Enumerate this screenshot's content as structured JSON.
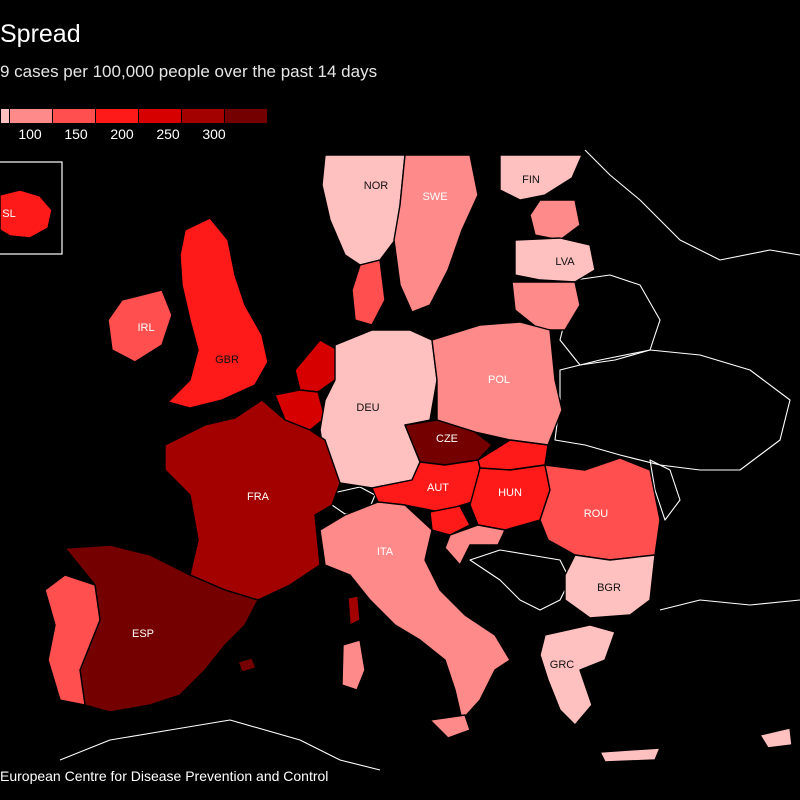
{
  "title": "Spread",
  "subtitle": "9 cases per 100,000 people over the past 14 days",
  "source": "European Centre for Disease Prevention and Control",
  "colors": {
    "background": "#000000",
    "outline": "#ffffff",
    "scale": [
      "#ffc0c0",
      "#ff8a8a",
      "#ff4f4f",
      "#ff1a1a",
      "#d60000",
      "#a30000",
      "#740000"
    ]
  },
  "legend": {
    "ticks": [
      "100",
      "150",
      "200",
      "250",
      "300"
    ]
  },
  "countries": [
    {
      "code": "NOR",
      "label": "NOR",
      "level": 0
    },
    {
      "code": "SWE",
      "label": "SWE",
      "level": 1
    },
    {
      "code": "FIN",
      "label": "FIN",
      "level": 0
    },
    {
      "code": "LVA",
      "label": "LVA",
      "level": 0
    },
    {
      "code": "IRL",
      "label": "IRL",
      "level": 2
    },
    {
      "code": "GBR",
      "label": "GBR",
      "level": 3
    },
    {
      "code": "DEU",
      "label": "DEU",
      "level": 0
    },
    {
      "code": "POL",
      "label": "POL",
      "level": 1
    },
    {
      "code": "CZE",
      "label": "CZE",
      "level": 6
    },
    {
      "code": "FRA",
      "label": "FRA",
      "level": 5
    },
    {
      "code": "AUT",
      "label": "AUT",
      "level": 3
    },
    {
      "code": "HUN",
      "label": "HUN",
      "level": 3
    },
    {
      "code": "ROU",
      "label": "ROU",
      "level": 2
    },
    {
      "code": "ITA",
      "label": "ITA",
      "level": 1
    },
    {
      "code": "BGR",
      "label": "BGR",
      "level": 0
    },
    {
      "code": "ESP",
      "label": "ESP",
      "level": 6
    },
    {
      "code": "GRC",
      "label": "GRC",
      "level": 0
    },
    {
      "code": "ISL",
      "label": "SL",
      "level": 3
    }
  ]
}
